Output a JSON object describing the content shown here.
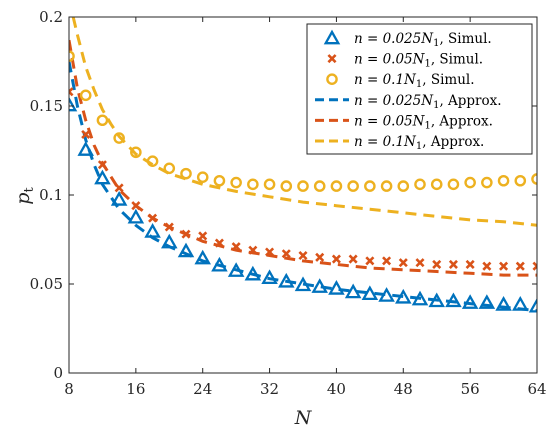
{
  "chart_data": {
    "type": "scatter",
    "title": "",
    "xlabel": "N",
    "ylabel_main": "p",
    "ylabel_sub": "t",
    "xlim": [
      8,
      64
    ],
    "ylim": [
      0,
      0.2
    ],
    "xticks": [
      8,
      16,
      24,
      32,
      40,
      48,
      56,
      64
    ],
    "yticks": [
      0,
      0.05,
      0.1,
      0.15,
      0.2
    ],
    "ytick_labels": [
      "0",
      "0.05",
      "0.1",
      "0.15",
      "0.2"
    ],
    "grid": false,
    "legend_position": "top-right",
    "series": [
      {
        "legend_math": "n = 0.025N",
        "legend_sub": "1",
        "legend_suffix": ", Simul.",
        "marker": "triangle",
        "color": "#0072BD",
        "x": [
          8,
          10,
          12,
          14,
          16,
          18,
          20,
          22,
          24,
          26,
          28,
          30,
          32,
          34,
          36,
          38,
          40,
          42,
          44,
          46,
          48,
          50,
          52,
          54,
          56,
          58,
          60,
          62,
          64
        ],
        "y": [
          0.15,
          0.125,
          0.109,
          0.097,
          0.087,
          0.079,
          0.073,
          0.068,
          0.064,
          0.06,
          0.057,
          0.055,
          0.053,
          0.051,
          0.049,
          0.048,
          0.047,
          0.045,
          0.044,
          0.043,
          0.042,
          0.041,
          0.04,
          0.04,
          0.039,
          0.039,
          0.038,
          0.038,
          0.037
        ]
      },
      {
        "legend_math": "n = 0.05N",
        "legend_sub": "1",
        "legend_suffix": ", Simul.",
        "marker": "x",
        "color": "#D95319",
        "x": [
          8,
          10,
          12,
          14,
          16,
          18,
          20,
          22,
          24,
          26,
          28,
          30,
          32,
          34,
          36,
          38,
          40,
          42,
          44,
          46,
          48,
          50,
          52,
          54,
          56,
          58,
          60,
          62,
          64
        ],
        "y": [
          0.158,
          0.134,
          0.117,
          0.104,
          0.094,
          0.087,
          0.082,
          0.078,
          0.077,
          0.073,
          0.071,
          0.069,
          0.068,
          0.067,
          0.066,
          0.065,
          0.064,
          0.064,
          0.063,
          0.063,
          0.062,
          0.062,
          0.061,
          0.061,
          0.061,
          0.06,
          0.06,
          0.06,
          0.06
        ]
      },
      {
        "legend_math": "n = 0.1N",
        "legend_sub": "1",
        "legend_suffix": ", Simul.",
        "marker": "circle",
        "color": "#EDB120",
        "x": [
          8,
          10,
          12,
          14,
          16,
          18,
          20,
          22,
          24,
          26,
          28,
          30,
          32,
          34,
          36,
          38,
          40,
          42,
          44,
          46,
          48,
          50,
          52,
          54,
          56,
          58,
          60,
          62,
          64
        ],
        "y": [
          0.178,
          0.156,
          0.142,
          0.132,
          0.124,
          0.119,
          0.115,
          0.112,
          0.11,
          0.108,
          0.107,
          0.106,
          0.106,
          0.105,
          0.105,
          0.105,
          0.105,
          0.105,
          0.105,
          0.105,
          0.105,
          0.106,
          0.106,
          0.106,
          0.107,
          0.107,
          0.108,
          0.108,
          0.109
        ]
      },
      {
        "legend_math": "n = 0.025N",
        "legend_sub": "1",
        "legend_suffix": ", Approx.",
        "marker": "dashed-line",
        "color": "#0072BD",
        "x": [
          8,
          9,
          10,
          11,
          12,
          14,
          16,
          18,
          20,
          24,
          28,
          32,
          36,
          40,
          44,
          48,
          52,
          56,
          60,
          64
        ],
        "y": [
          0.175,
          0.15,
          0.131,
          0.117,
          0.106,
          0.092,
          0.083,
          0.076,
          0.071,
          0.063,
          0.058,
          0.053,
          0.05,
          0.047,
          0.045,
          0.043,
          0.041,
          0.039,
          0.037,
          0.035
        ]
      },
      {
        "legend_math": "n = 0.05N",
        "legend_sub": "1",
        "legend_suffix": ", Approx.",
        "marker": "dashed-line",
        "color": "#D95319",
        "x": [
          8,
          9,
          10,
          11,
          12,
          14,
          16,
          18,
          20,
          24,
          28,
          32,
          36,
          40,
          44,
          48,
          52,
          56,
          60,
          64
        ],
        "y": [
          0.187,
          0.16,
          0.142,
          0.128,
          0.118,
          0.103,
          0.094,
          0.087,
          0.082,
          0.074,
          0.069,
          0.066,
          0.063,
          0.061,
          0.059,
          0.058,
          0.057,
          0.056,
          0.055,
          0.055
        ]
      },
      {
        "legend_math": "n = 0.1N",
        "legend_sub": "1",
        "legend_suffix": ", Approx.",
        "marker": "dashed-line",
        "color": "#EDB120",
        "x": [
          8.5,
          9,
          10,
          11,
          12,
          13,
          14,
          16,
          18,
          20,
          22,
          24,
          28,
          32,
          36,
          40,
          44,
          48,
          52,
          56,
          60,
          64
        ],
        "y": [
          0.2,
          0.19,
          0.172,
          0.159,
          0.148,
          0.14,
          0.133,
          0.123,
          0.117,
          0.112,
          0.109,
          0.106,
          0.102,
          0.099,
          0.096,
          0.094,
          0.092,
          0.09,
          0.088,
          0.086,
          0.085,
          0.083
        ]
      }
    ]
  }
}
